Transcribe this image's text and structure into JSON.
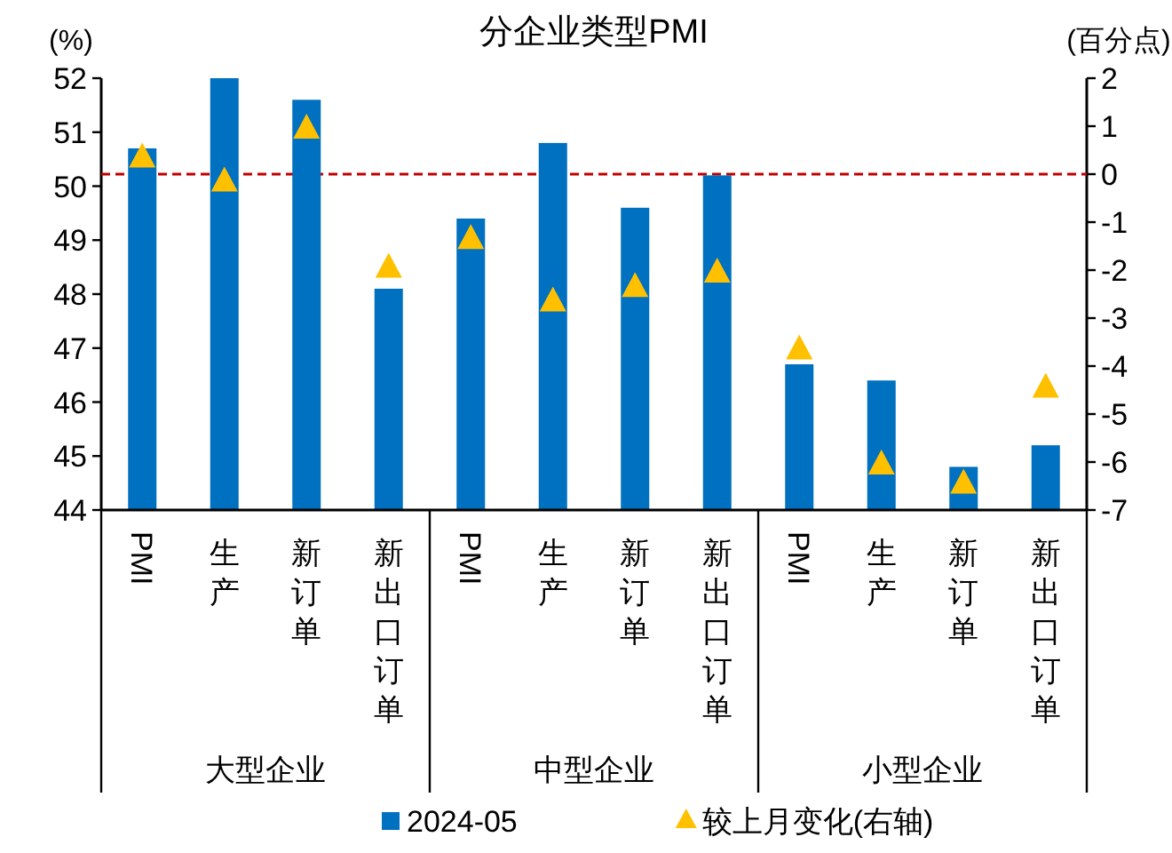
{
  "chart_data": {
    "type": "bar",
    "title": "分企业类型PMI",
    "ylabel": "(%)",
    "y2label": "(百分点)",
    "categories": [
      "PMI",
      "生产",
      "新订单",
      "新出口订单",
      "PMI",
      "生产",
      "新订单",
      "新出口订单",
      "PMI",
      "生产",
      "新订单",
      "新出口订单"
    ],
    "annotations": [
      "大型企业",
      "中型企业",
      "小型企业"
    ],
    "series": [
      {
        "name": "2024-05",
        "color": "#0070c0",
        "values": [
          50.7,
          52.0,
          51.6,
          48.1,
          49.4,
          50.8,
          49.6,
          50.2,
          46.7,
          46.4,
          44.8,
          45.2
        ]
      },
      {
        "name": "较上月变化(右轴)",
        "type": "scatter",
        "axis": "y2",
        "marker": "triangle",
        "color": "#ffc000",
        "values": [
          0.4,
          -0.1,
          1.0,
          -1.9,
          -1.3,
          -2.6,
          -2.3,
          -2.0,
          -3.6,
          -6.0,
          -6.4,
          -4.4
        ]
      }
    ],
    "ylim": [
      44,
      52
    ],
    "yticks": [
      44,
      45,
      46,
      47,
      48,
      49,
      50,
      51,
      52
    ],
    "y2lim": [
      -7,
      2
    ],
    "y2ticks": [
      -7,
      -6,
      -5,
      -4,
      -3,
      -2,
      -1,
      0,
      1,
      2
    ],
    "ref_lines": [
      {
        "axis": "y2",
        "value": 0,
        "color": "#c00000",
        "line_style": "dashed"
      }
    ],
    "legend": "bottom"
  }
}
